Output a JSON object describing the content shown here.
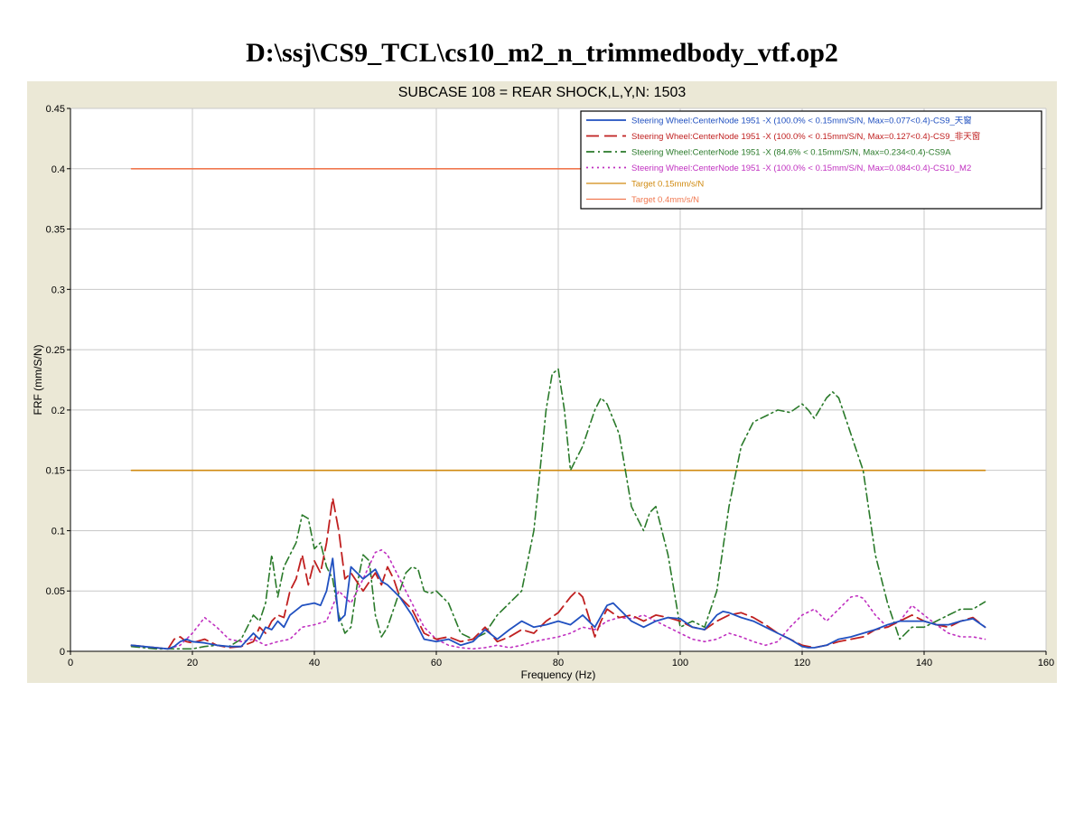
{
  "page": {
    "title": "D:\\ssj\\CS9_TCL\\cs10_m2_n_trimmedbody_vtf.op2"
  },
  "chart_data": {
    "type": "line",
    "title": "SUBCASE 108 = REAR SHOCK,L,Y,N: 1503",
    "xlabel": "Frequency (Hz)",
    "ylabel": "FRF (mm/S/N)",
    "xlim": [
      0,
      160
    ],
    "ylim": [
      0,
      0.45
    ],
    "xticks": [
      "0",
      "20",
      "40",
      "60",
      "80",
      "100",
      "120",
      "140",
      "160"
    ],
    "yticks": [
      "0",
      "0.05",
      "0.1",
      "0.15",
      "0.2",
      "0.25",
      "0.3",
      "0.35",
      "0.4",
      "0.45"
    ],
    "grid": true,
    "legend_position": "top-right",
    "series": [
      {
        "name": "Steering Wheel:CenterNode 1951 -X  (100.0% < 0.15mm/S/N, Max=0.077<0.4)-CS9_天窗",
        "color": "#2050c0",
        "style": "solid",
        "x": [
          10,
          12,
          14,
          16,
          17,
          18,
          19,
          20,
          22,
          24,
          26,
          28,
          30,
          31,
          32,
          33,
          34,
          35,
          36,
          38,
          40,
          41,
          42,
          43,
          44,
          45,
          46,
          48,
          50,
          51,
          52,
          54,
          56,
          58,
          60,
          62,
          64,
          66,
          68,
          70,
          72,
          74,
          76,
          78,
          80,
          82,
          84,
          86,
          88,
          89,
          90,
          92,
          94,
          96,
          98,
          100,
          102,
          104,
          106,
          107,
          108,
          110,
          112,
          114,
          116,
          118,
          120,
          121,
          122,
          124,
          126,
          128,
          130,
          132,
          134,
          136,
          138,
          140,
          142,
          144,
          146,
          148,
          150
        ],
        "y": [
          0.005,
          0.004,
          0.003,
          0.002,
          0.004,
          0.008,
          0.01,
          0.008,
          0.007,
          0.005,
          0.004,
          0.004,
          0.015,
          0.01,
          0.02,
          0.018,
          0.025,
          0.02,
          0.03,
          0.038,
          0.04,
          0.038,
          0.05,
          0.077,
          0.025,
          0.03,
          0.07,
          0.06,
          0.068,
          0.058,
          0.055,
          0.045,
          0.03,
          0.01,
          0.008,
          0.01,
          0.005,
          0.008,
          0.018,
          0.01,
          0.018,
          0.025,
          0.02,
          0.022,
          0.025,
          0.022,
          0.03,
          0.02,
          0.038,
          0.04,
          0.035,
          0.025,
          0.02,
          0.025,
          0.028,
          0.027,
          0.02,
          0.018,
          0.03,
          0.033,
          0.032,
          0.028,
          0.025,
          0.02,
          0.015,
          0.01,
          0.004,
          0.003,
          0.003,
          0.005,
          0.01,
          0.012,
          0.015,
          0.018,
          0.022,
          0.025,
          0.025,
          0.025,
          0.022,
          0.022,
          0.025,
          0.027,
          0.02
        ]
      },
      {
        "name": "Steering Wheel:CenterNode 1951 -X  (100.0% < 0.15mm/S/N, Max=0.127<0.4)-CS9_非天窗",
        "color": "#c02020",
        "style": "dashed",
        "x": [
          10,
          12,
          14,
          16,
          17,
          18,
          19,
          20,
          22,
          24,
          26,
          28,
          30,
          31,
          32,
          33,
          34,
          35,
          36,
          37,
          38,
          39,
          40,
          41,
          42,
          43,
          44,
          45,
          46,
          48,
          50,
          51,
          52,
          53,
          54,
          56,
          58,
          60,
          62,
          64,
          66,
          68,
          70,
          72,
          74,
          76,
          78,
          80,
          82,
          83,
          84,
          86,
          87,
          88,
          90,
          92,
          94,
          96,
          98,
          100,
          102,
          104,
          106,
          108,
          110,
          112,
          114,
          116,
          118,
          120,
          122,
          124,
          126,
          128,
          130,
          132,
          134,
          136,
          138,
          140,
          142,
          144,
          146,
          148,
          150
        ],
        "y": [
          0.005,
          0.004,
          0.003,
          0.002,
          0.01,
          0.012,
          0.008,
          0.007,
          0.01,
          0.005,
          0.003,
          0.004,
          0.008,
          0.02,
          0.015,
          0.025,
          0.03,
          0.028,
          0.05,
          0.06,
          0.08,
          0.055,
          0.075,
          0.065,
          0.09,
          0.127,
          0.1,
          0.06,
          0.065,
          0.05,
          0.065,
          0.055,
          0.07,
          0.06,
          0.045,
          0.035,
          0.015,
          0.01,
          0.012,
          0.008,
          0.01,
          0.02,
          0.008,
          0.012,
          0.018,
          0.015,
          0.025,
          0.032,
          0.045,
          0.05,
          0.045,
          0.012,
          0.025,
          0.035,
          0.028,
          0.03,
          0.025,
          0.03,
          0.028,
          0.025,
          0.02,
          0.018,
          0.025,
          0.03,
          0.032,
          0.028,
          0.022,
          0.015,
          0.01,
          0.005,
          0.003,
          0.005,
          0.008,
          0.01,
          0.012,
          0.018,
          0.02,
          0.025,
          0.03,
          0.025,
          0.022,
          0.02,
          0.025,
          0.028,
          0.02
        ]
      },
      {
        "name": "Steering Wheel:CenterNode 1951 -X  (84.6% < 0.15mm/S/N, Max=0.234<0.4)-CS9A",
        "color": "#2a7a2a",
        "style": "dashdot",
        "x": [
          10,
          12,
          14,
          16,
          18,
          20,
          22,
          24,
          26,
          28,
          30,
          31,
          32,
          33,
          34,
          35,
          36,
          37,
          38,
          39,
          40,
          41,
          42,
          43,
          44,
          45,
          46,
          47,
          48,
          49,
          50,
          51,
          52,
          54,
          55,
          56,
          57,
          58,
          59,
          60,
          62,
          64,
          66,
          68,
          70,
          72,
          74,
          76,
          77,
          78,
          79,
          80,
          81,
          82,
          84,
          86,
          87,
          88,
          90,
          91,
          92,
          94,
          95,
          96,
          98,
          100,
          102,
          104,
          106,
          108,
          110,
          112,
          114,
          116,
          118,
          120,
          121,
          122,
          124,
          125,
          126,
          128,
          130,
          132,
          134,
          136,
          138,
          140,
          142,
          144,
          146,
          148,
          150
        ],
        "y": [
          0.004,
          0.003,
          0.002,
          0.002,
          0.002,
          0.002,
          0.004,
          0.005,
          0.004,
          0.01,
          0.03,
          0.025,
          0.04,
          0.08,
          0.045,
          0.07,
          0.08,
          0.09,
          0.113,
          0.11,
          0.085,
          0.09,
          0.07,
          0.06,
          0.03,
          0.015,
          0.02,
          0.055,
          0.08,
          0.075,
          0.03,
          0.012,
          0.02,
          0.05,
          0.065,
          0.07,
          0.068,
          0.05,
          0.048,
          0.05,
          0.04,
          0.015,
          0.01,
          0.015,
          0.03,
          0.04,
          0.05,
          0.1,
          0.15,
          0.2,
          0.23,
          0.234,
          0.2,
          0.15,
          0.17,
          0.2,
          0.21,
          0.205,
          0.18,
          0.15,
          0.12,
          0.1,
          0.115,
          0.12,
          0.08,
          0.02,
          0.025,
          0.02,
          0.05,
          0.12,
          0.17,
          0.19,
          0.195,
          0.2,
          0.198,
          0.205,
          0.2,
          0.193,
          0.21,
          0.215,
          0.21,
          0.18,
          0.15,
          0.08,
          0.04,
          0.01,
          0.02,
          0.02,
          0.025,
          0.03,
          0.035,
          0.035,
          0.041
        ]
      },
      {
        "name": "Steering Wheel:CenterNode 1951 -X  (100.0% < 0.15mm/S/N, Max=0.084<0.4)-CS10_M2",
        "color": "#c030c0",
        "style": "dotted",
        "x": [
          10,
          12,
          14,
          16,
          18,
          20,
          22,
          24,
          26,
          28,
          30,
          32,
          34,
          36,
          38,
          40,
          42,
          44,
          46,
          48,
          50,
          51,
          52,
          54,
          56,
          58,
          60,
          62,
          64,
          66,
          68,
          70,
          72,
          74,
          76,
          78,
          80,
          82,
          84,
          86,
          88,
          90,
          92,
          94,
          96,
          98,
          100,
          102,
          104,
          106,
          108,
          110,
          112,
          114,
          116,
          118,
          120,
          122,
          124,
          126,
          128,
          129,
          130,
          132,
          134,
          136,
          138,
          140,
          142,
          144,
          146,
          148,
          150
        ],
        "y": [
          0.005,
          0.004,
          0.003,
          0.002,
          0.005,
          0.015,
          0.028,
          0.02,
          0.01,
          0.008,
          0.01,
          0.005,
          0.008,
          0.01,
          0.02,
          0.022,
          0.025,
          0.05,
          0.04,
          0.06,
          0.082,
          0.084,
          0.08,
          0.06,
          0.04,
          0.02,
          0.01,
          0.005,
          0.003,
          0.002,
          0.003,
          0.005,
          0.003,
          0.005,
          0.008,
          0.01,
          0.012,
          0.015,
          0.02,
          0.018,
          0.025,
          0.028,
          0.027,
          0.03,
          0.025,
          0.02,
          0.015,
          0.01,
          0.008,
          0.01,
          0.015,
          0.012,
          0.008,
          0.005,
          0.008,
          0.02,
          0.03,
          0.035,
          0.025,
          0.035,
          0.045,
          0.046,
          0.044,
          0.03,
          0.02,
          0.025,
          0.038,
          0.03,
          0.022,
          0.015,
          0.012,
          0.012,
          0.01
        ]
      },
      {
        "name": "Target 0.15mm/s/N",
        "color": "#d08a10",
        "style": "solid",
        "x": [
          10,
          150
        ],
        "y": [
          0.15,
          0.15
        ]
      },
      {
        "name": "Target 0.4mm/s/N",
        "color": "#f07850",
        "style": "solid",
        "x": [
          10,
          150
        ],
        "y": [
          0.4,
          0.4
        ]
      }
    ]
  }
}
